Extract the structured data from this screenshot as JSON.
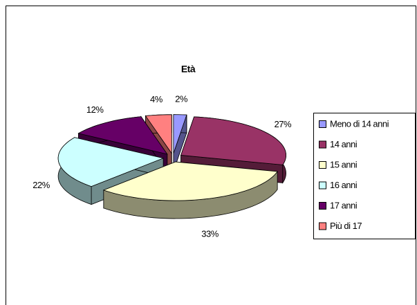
{
  "chart_data": {
    "type": "pie3d",
    "title": "Età",
    "categories": [
      "Meno di 14 anni",
      "14 anni",
      "15 anni",
      "16 anni",
      "17 anni",
      "Più di 17"
    ],
    "values": [
      2,
      27,
      33,
      22,
      12,
      4
    ],
    "value_labels": [
      "2%",
      "27%",
      "33%",
      "22%",
      "12%",
      "4%"
    ],
    "colors": [
      "#9999ff",
      "#993366",
      "#ffffcc",
      "#ccffff",
      "#660066",
      "#ff8080"
    ],
    "legend": "right"
  }
}
